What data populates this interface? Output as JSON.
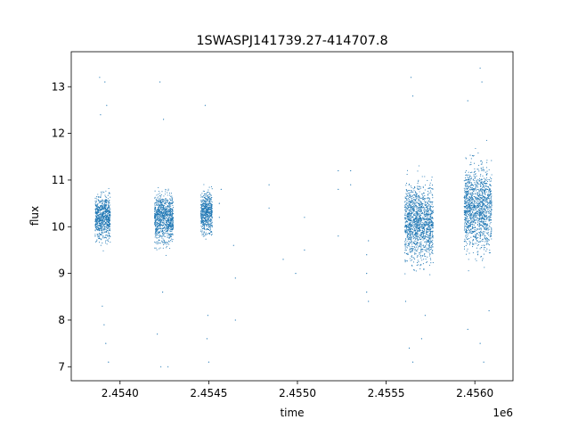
{
  "chart_data": {
    "type": "scatter",
    "title": "1SWASPJ141739.27-414707.8",
    "xlabel": "time",
    "ylabel": "flux",
    "x_offset_label": "1e6",
    "xlim": [
      2453725,
      2456215
    ],
    "ylim": [
      6.7,
      13.75
    ],
    "x_ticks": [
      2454000,
      2454500,
      2455000,
      2455500,
      2456000
    ],
    "x_tick_labels": [
      "2.4540",
      "2.4545",
      "2.4550",
      "2.4555",
      "2.4560"
    ],
    "y_ticks": [
      7,
      8,
      9,
      10,
      11,
      12,
      13
    ],
    "y_tick_labels": [
      "7",
      "8",
      "9",
      "10",
      "11",
      "12",
      "13"
    ],
    "grid": false,
    "point_color": "#1f77b4",
    "clusters": [
      {
        "x_start": 2453860,
        "x_end": 2453945,
        "center": 10.2,
        "spread": 0.55
      },
      {
        "x_start": 2454195,
        "x_end": 2454300,
        "center": 10.2,
        "spread": 0.6
      },
      {
        "x_start": 2454455,
        "x_end": 2454520,
        "center": 10.3,
        "spread": 0.5
      },
      {
        "x_start": 2455605,
        "x_end": 2455765,
        "center": 10.1,
        "spread": 0.9
      },
      {
        "x_start": 2455940,
        "x_end": 2456095,
        "center": 10.4,
        "spread": 1.0
      }
    ],
    "sparse_points": [
      {
        "x": 2454560,
        "y": 10.5
      },
      {
        "x": 2454560,
        "y": 10.2
      },
      {
        "x": 2454570,
        "y": 10.8
      },
      {
        "x": 2454640,
        "y": 9.6
      },
      {
        "x": 2454650,
        "y": 8.9
      },
      {
        "x": 2454650,
        "y": 8.0
      },
      {
        "x": 2454840,
        "y": 10.4
      },
      {
        "x": 2454840,
        "y": 10.9
      },
      {
        "x": 2454920,
        "y": 9.3
      },
      {
        "x": 2454990,
        "y": 9.0
      },
      {
        "x": 2455040,
        "y": 10.2
      },
      {
        "x": 2455040,
        "y": 9.5
      },
      {
        "x": 2455230,
        "y": 11.2
      },
      {
        "x": 2455230,
        "y": 10.8
      },
      {
        "x": 2455230,
        "y": 9.8
      },
      {
        "x": 2455300,
        "y": 11.2
      },
      {
        "x": 2455300,
        "y": 10.9
      },
      {
        "x": 2455390,
        "y": 9.4
      },
      {
        "x": 2455390,
        "y": 9.0
      },
      {
        "x": 2455390,
        "y": 8.6
      },
      {
        "x": 2455400,
        "y": 9.7
      },
      {
        "x": 2455400,
        "y": 8.4
      }
    ],
    "outliers": [
      {
        "x": 2453885,
        "y": 13.2
      },
      {
        "x": 2453915,
        "y": 13.1
      },
      {
        "x": 2453890,
        "y": 12.4
      },
      {
        "x": 2453925,
        "y": 12.6
      },
      {
        "x": 2453900,
        "y": 8.3
      },
      {
        "x": 2453920,
        "y": 7.5
      },
      {
        "x": 2453935,
        "y": 7.1
      },
      {
        "x": 2453910,
        "y": 7.9
      },
      {
        "x": 2454225,
        "y": 13.1
      },
      {
        "x": 2454245,
        "y": 12.3
      },
      {
        "x": 2454210,
        "y": 7.7
      },
      {
        "x": 2454230,
        "y": 7.0
      },
      {
        "x": 2454270,
        "y": 7.0
      },
      {
        "x": 2454240,
        "y": 8.6
      },
      {
        "x": 2454480,
        "y": 12.6
      },
      {
        "x": 2454490,
        "y": 7.6
      },
      {
        "x": 2454500,
        "y": 7.1
      },
      {
        "x": 2454495,
        "y": 8.1
      },
      {
        "x": 2455640,
        "y": 13.2
      },
      {
        "x": 2455650,
        "y": 12.8
      },
      {
        "x": 2455630,
        "y": 7.4
      },
      {
        "x": 2455650,
        "y": 7.1
      },
      {
        "x": 2455700,
        "y": 7.6
      },
      {
        "x": 2455720,
        "y": 8.1
      },
      {
        "x": 2455610,
        "y": 8.4
      },
      {
        "x": 2455960,
        "y": 12.7
      },
      {
        "x": 2456030,
        "y": 13.4
      },
      {
        "x": 2456040,
        "y": 13.1
      },
      {
        "x": 2456050,
        "y": 7.1
      },
      {
        "x": 2456030,
        "y": 7.5
      },
      {
        "x": 2455960,
        "y": 7.8
      },
      {
        "x": 2456080,
        "y": 8.2
      }
    ]
  }
}
